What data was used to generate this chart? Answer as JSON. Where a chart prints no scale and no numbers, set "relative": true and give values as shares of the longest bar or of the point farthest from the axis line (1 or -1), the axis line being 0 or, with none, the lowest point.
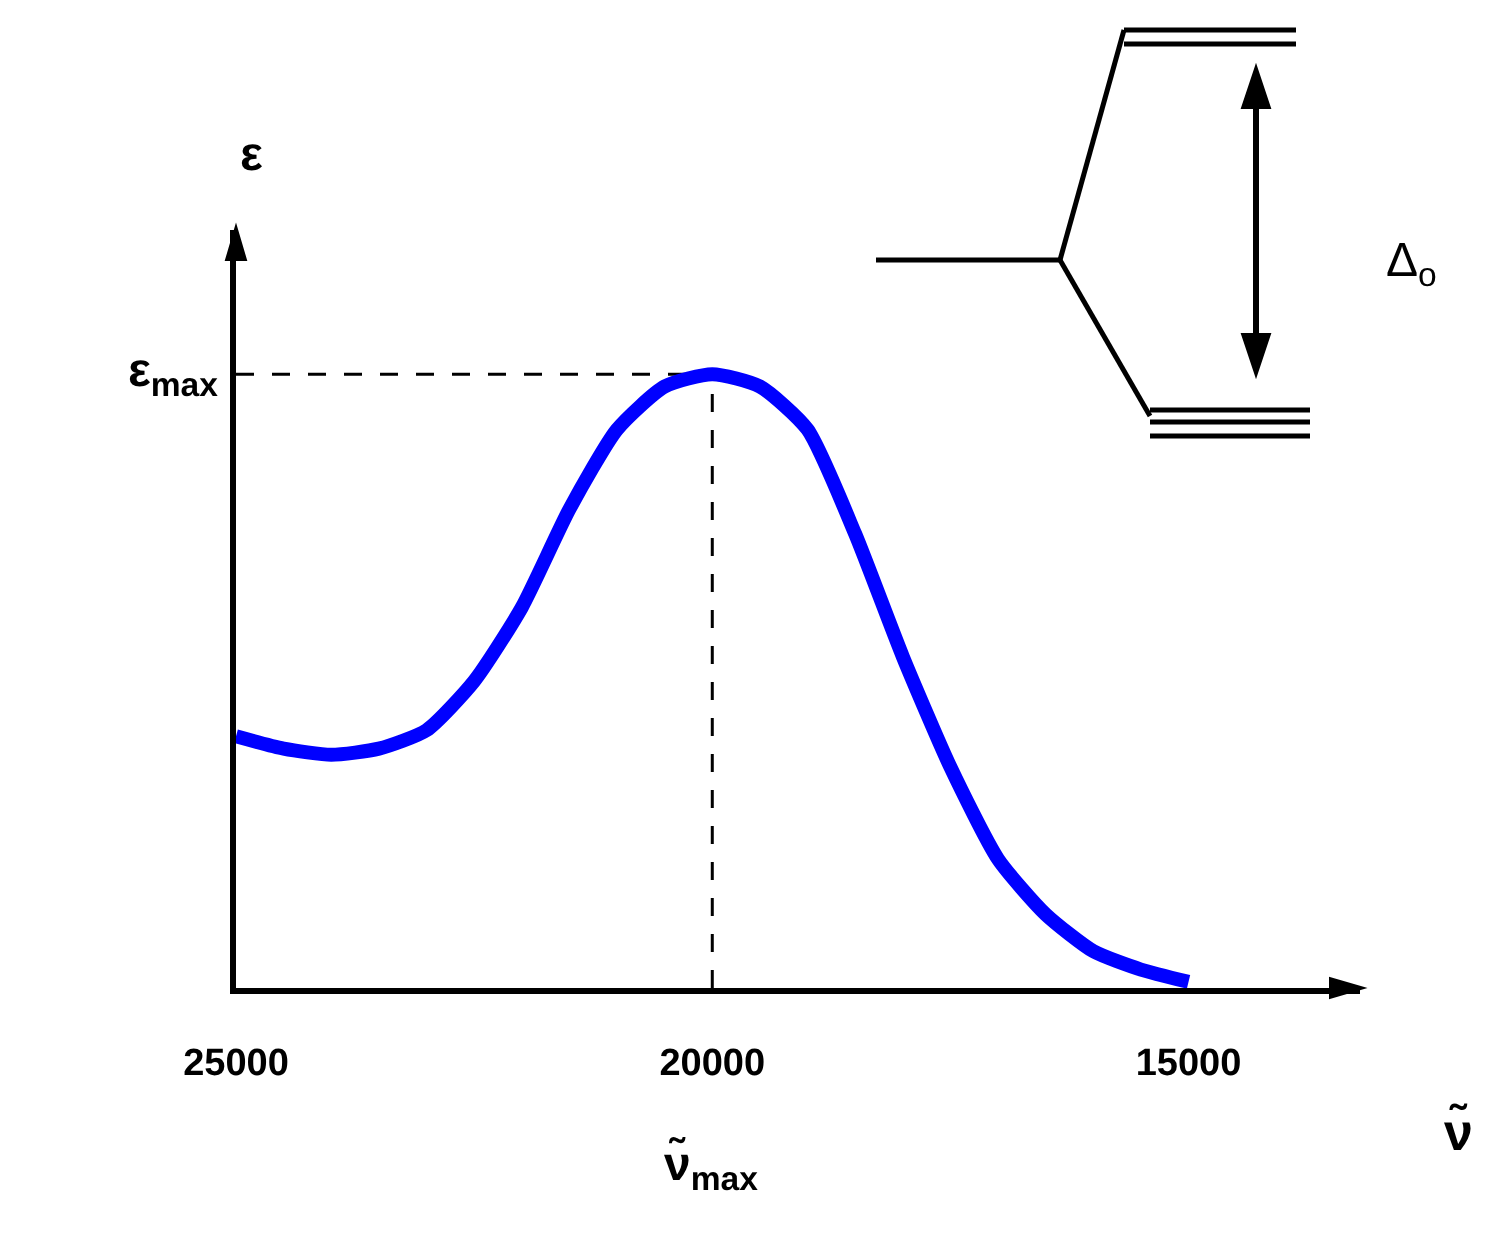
{
  "chart_data": {
    "type": "line",
    "relative": true,
    "xlabel": "ν̃",
    "ylabel": "ε",
    "x": [
      25000,
      24500,
      24000,
      23500,
      23000,
      22500,
      22000,
      21500,
      21000,
      20500,
      20000,
      19500,
      19000,
      18500,
      18000,
      17500,
      17000,
      16500,
      16000,
      15500,
      15000
    ],
    "series": [
      {
        "color": "#0000ff",
        "values": [
          0.41,
          0.39,
          0.38,
          0.39,
          0.42,
          0.5,
          0.62,
          0.78,
          0.91,
          0.98,
          1.0,
          0.98,
          0.91,
          0.74,
          0.54,
          0.36,
          0.21,
          0.12,
          0.06,
          0.03,
          0.01
        ]
      }
    ],
    "xlim": [
      25000,
      13200
    ],
    "xticks": [
      25000,
      20000,
      15000
    ],
    "ref_lines": [
      {
        "axis": "x",
        "value": 20000,
        "line_style": "dashed",
        "color": "#000000"
      },
      {
        "axis": "y",
        "value": 1,
        "line_style": "dashed",
        "color": "#000000"
      }
    ],
    "annotations": [
      "ε$_{max}$",
      "ν̃$_{max}$",
      "Δ$_{o}$"
    ],
    "grid": false,
    "marker": "none",
    "line_style": "solid"
  }
}
